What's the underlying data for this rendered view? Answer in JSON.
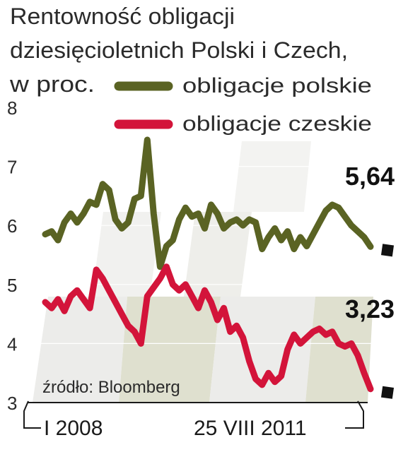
{
  "chart_data": {
    "type": "line",
    "title_lines": [
      "Rentowność obligacji",
      "dziesięcioletnich Polski i Czech,",
      "w proc."
    ],
    "yticks": [
      "3",
      "4",
      "5",
      "6",
      "7",
      "8"
    ],
    "ylim": [
      3,
      8
    ],
    "x_start_label": "I 2008",
    "x_end_label": "25 VIII 2011",
    "source": "źródło: Bloomberg",
    "grid": true,
    "legend_position": "top-right",
    "series": [
      {
        "name": "obligacje polskie",
        "color": "#5a6323",
        "end_value_label": "5,64",
        "values": [
          5.85,
          5.9,
          5.75,
          6.05,
          6.2,
          6.05,
          6.2,
          6.4,
          6.35,
          6.7,
          6.6,
          6.1,
          5.95,
          6.05,
          6.45,
          6.5,
          7.45,
          6.2,
          5.3,
          5.65,
          5.75,
          6.1,
          6.3,
          6.15,
          6.2,
          5.95,
          6.35,
          6.2,
          5.95,
          6.05,
          6.1,
          6.0,
          6.1,
          6.05,
          5.6,
          5.8,
          5.95,
          5.75,
          5.9,
          5.6,
          5.8,
          5.65,
          5.85,
          6.05,
          6.25,
          6.35,
          6.3,
          6.15,
          6.0,
          5.9,
          5.8,
          5.64
        ]
      },
      {
        "name": "obligacje czeskie",
        "color": "#d3143a",
        "end_value_label": "3,23",
        "values": [
          4.7,
          4.6,
          4.75,
          4.55,
          4.8,
          4.9,
          4.75,
          4.6,
          5.25,
          5.1,
          4.9,
          4.7,
          4.5,
          4.3,
          4.2,
          4.0,
          4.8,
          4.95,
          5.1,
          5.3,
          5.0,
          4.9,
          5.0,
          4.8,
          4.6,
          4.9,
          4.7,
          4.4,
          4.6,
          4.2,
          4.3,
          4.1,
          3.7,
          3.4,
          3.3,
          3.5,
          3.35,
          3.45,
          3.9,
          4.15,
          4.0,
          4.1,
          4.2,
          4.25,
          4.15,
          4.2,
          4.0,
          3.95,
          4.0,
          3.8,
          3.5,
          3.23
        ]
      }
    ]
  }
}
